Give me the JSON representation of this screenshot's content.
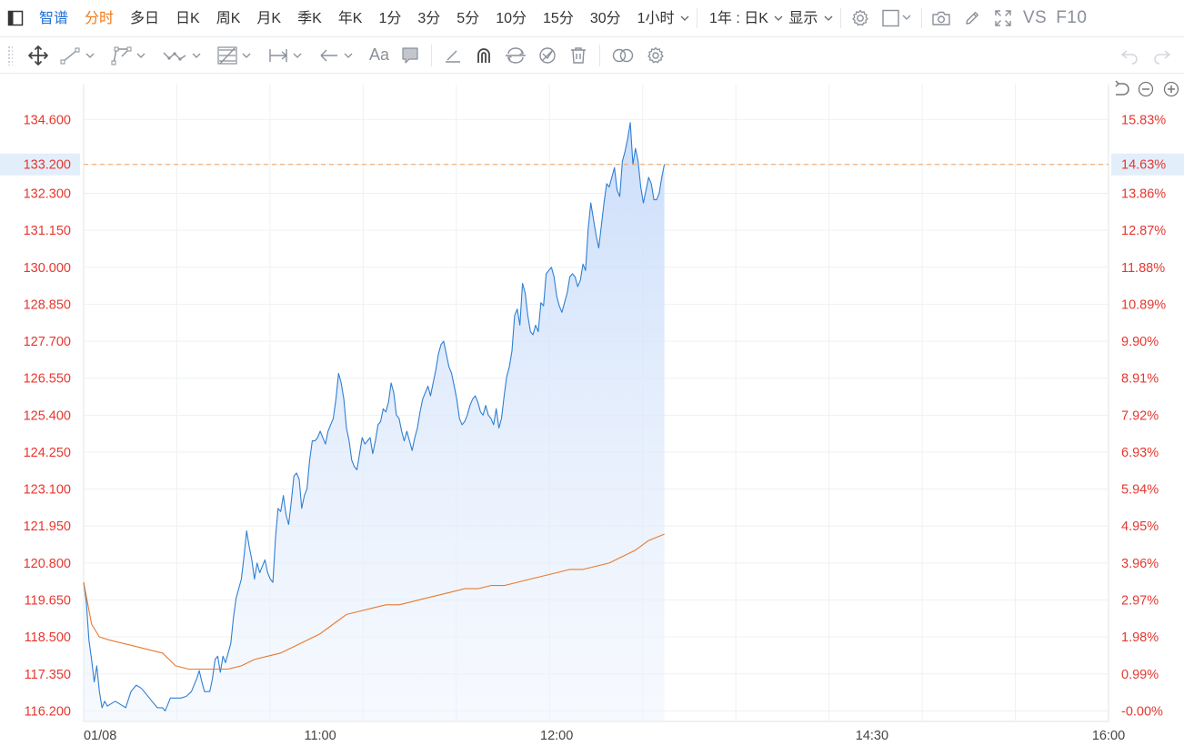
{
  "toolbar": {
    "tabs": [
      "智谱",
      "分时",
      "多日",
      "日K",
      "周K",
      "月K",
      "季K",
      "年K",
      "1分",
      "3分",
      "5分",
      "10分",
      "15分",
      "30分",
      "1小时"
    ],
    "range_select": "1年 : 日K",
    "display_select": "显示",
    "vs_label": "VS",
    "f10_label": "F10",
    "colors": {
      "active_blue": "#1f6fd8",
      "active_orange": "#f07a1a"
    }
  },
  "drawing_tools": {
    "icons": [
      "move-icon",
      "line-tool-icon",
      "polyline-tool-icon",
      "wave-tool-icon",
      "fib-tool-icon",
      "measure-tool-icon",
      "arrow-tool-icon",
      "text-tool-icon",
      "comment-tool-icon",
      "pen-icon",
      "magnet-icon",
      "sync-icon",
      "hide-icon",
      "delete-icon",
      "compare-icon",
      "settings-icon"
    ],
    "text_tool_label": "Aa"
  },
  "chart_data": {
    "type": "line",
    "x_ticks": [
      "01/08",
      "11:00",
      "12:00",
      "14:30",
      "16:00"
    ],
    "y_left_ticks": [
      "134.600",
      "133.200",
      "132.300",
      "131.150",
      "130.000",
      "128.850",
      "127.700",
      "126.550",
      "125.400",
      "124.250",
      "123.100",
      "121.950",
      "120.800",
      "119.650",
      "118.500",
      "117.350",
      "116.200"
    ],
    "y_right_ticks": [
      "15.83%",
      "14.63%",
      "13.86%",
      "12.87%",
      "11.88%",
      "10.89%",
      "9.90%",
      "8.91%",
      "7.92%",
      "6.93%",
      "5.94%",
      "4.95%",
      "3.96%",
      "2.97%",
      "1.98%",
      "0.99%",
      "-0.00%"
    ],
    "ylim": [
      115.9,
      135.4
    ],
    "xlim_minutes": [
      0,
      390
    ],
    "current_price": "133.200",
    "current_pct": "14.63%",
    "colors": {
      "price": "#2f7fd3",
      "avg": "#e8792c",
      "fill": "#cfe0fa",
      "axis_text": "#e6372f",
      "current_line": "#f0a060",
      "current_bg": "#e3eefb"
    },
    "series": [
      {
        "name": "price",
        "points": [
          [
            0,
            120.2
          ],
          [
            1,
            119.6
          ],
          [
            2,
            118.4
          ],
          [
            3,
            117.8
          ],
          [
            4,
            117.1
          ],
          [
            5,
            117.6
          ],
          [
            6,
            116.8
          ],
          [
            7,
            116.3
          ],
          [
            8,
            116.5
          ],
          [
            9,
            116.35
          ],
          [
            10,
            116.4
          ],
          [
            12,
            116.5
          ],
          [
            14,
            116.4
          ],
          [
            16,
            116.3
          ],
          [
            18,
            116.8
          ],
          [
            20,
            117.0
          ],
          [
            22,
            116.9
          ],
          [
            24,
            116.7
          ],
          [
            26,
            116.5
          ],
          [
            28,
            116.3
          ],
          [
            30,
            116.3
          ],
          [
            31,
            116.2
          ],
          [
            33,
            116.6
          ],
          [
            35,
            116.6
          ],
          [
            37,
            116.6
          ],
          [
            39,
            116.65
          ],
          [
            41,
            116.8
          ],
          [
            43,
            117.2
          ],
          [
            44,
            117.45
          ],
          [
            45,
            117.1
          ],
          [
            46,
            116.8
          ],
          [
            48,
            116.8
          ],
          [
            49,
            117.2
          ],
          [
            50,
            117.8
          ],
          [
            51,
            117.9
          ],
          [
            52,
            117.4
          ],
          [
            53,
            117.9
          ],
          [
            54,
            117.7
          ],
          [
            56,
            118.3
          ],
          [
            57,
            119.1
          ],
          [
            58,
            119.7
          ],
          [
            59,
            120.0
          ],
          [
            60,
            120.3
          ],
          [
            61,
            121.0
          ],
          [
            62,
            121.8
          ],
          [
            63,
            121.3
          ],
          [
            64,
            120.9
          ],
          [
            65,
            120.3
          ],
          [
            66,
            120.8
          ],
          [
            67,
            120.5
          ],
          [
            68,
            120.7
          ],
          [
            69,
            120.9
          ],
          [
            70,
            120.5
          ],
          [
            71,
            120.3
          ],
          [
            72,
            120.2
          ],
          [
            73,
            121.6
          ],
          [
            74,
            122.5
          ],
          [
            75,
            122.4
          ],
          [
            76,
            122.9
          ],
          [
            77,
            122.3
          ],
          [
            78,
            122.0
          ],
          [
            79,
            122.7
          ],
          [
            80,
            123.5
          ],
          [
            81,
            123.6
          ],
          [
            82,
            123.4
          ],
          [
            83,
            122.5
          ],
          [
            84,
            122.9
          ],
          [
            85,
            123.1
          ],
          [
            86,
            124.0
          ],
          [
            87,
            124.6
          ],
          [
            88,
            124.6
          ],
          [
            89,
            124.7
          ],
          [
            90,
            124.9
          ],
          [
            91,
            124.7
          ],
          [
            92,
            124.5
          ],
          [
            93,
            124.9
          ],
          [
            94,
            125.1
          ],
          [
            95,
            125.3
          ],
          [
            96,
            125.9
          ],
          [
            97,
            126.7
          ],
          [
            98,
            126.4
          ],
          [
            99,
            125.9
          ],
          [
            100,
            125.0
          ],
          [
            101,
            124.6
          ],
          [
            102,
            124.0
          ],
          [
            103,
            123.8
          ],
          [
            104,
            123.7
          ],
          [
            105,
            124.2
          ],
          [
            106,
            124.7
          ],
          [
            107,
            124.5
          ],
          [
            108,
            124.6
          ],
          [
            109,
            124.7
          ],
          [
            110,
            124.2
          ],
          [
            111,
            124.6
          ],
          [
            112,
            125.1
          ],
          [
            113,
            125.2
          ],
          [
            114,
            125.6
          ],
          [
            115,
            125.5
          ],
          [
            116,
            125.8
          ],
          [
            117,
            126.4
          ],
          [
            118,
            126.1
          ],
          [
            119,
            125.4
          ],
          [
            120,
            125.3
          ],
          [
            121,
            124.9
          ],
          [
            122,
            124.6
          ],
          [
            123,
            124.9
          ],
          [
            124,
            124.6
          ],
          [
            125,
            124.3
          ],
          [
            126,
            124.7
          ],
          [
            127,
            125.0
          ],
          [
            128,
            125.5
          ],
          [
            129,
            125.9
          ],
          [
            130,
            126.1
          ],
          [
            131,
            126.3
          ],
          [
            132,
            126.0
          ],
          [
            133,
            126.4
          ],
          [
            134,
            126.8
          ],
          [
            135,
            127.3
          ],
          [
            136,
            127.6
          ],
          [
            137,
            127.7
          ],
          [
            138,
            127.3
          ],
          [
            139,
            126.9
          ],
          [
            140,
            126.7
          ],
          [
            141,
            126.3
          ],
          [
            142,
            125.9
          ],
          [
            143,
            125.3
          ],
          [
            144,
            125.1
          ],
          [
            145,
            125.2
          ],
          [
            146,
            125.4
          ],
          [
            147,
            125.7
          ],
          [
            148,
            125.9
          ],
          [
            149,
            126.0
          ],
          [
            150,
            125.8
          ],
          [
            151,
            125.5
          ],
          [
            152,
            125.4
          ],
          [
            153,
            125.7
          ],
          [
            154,
            125.4
          ],
          [
            155,
            125.3
          ],
          [
            156,
            125.1
          ],
          [
            157,
            125.6
          ],
          [
            158,
            125.0
          ],
          [
            159,
            125.3
          ],
          [
            160,
            126.0
          ],
          [
            161,
            126.6
          ],
          [
            162,
            126.9
          ],
          [
            163,
            127.4
          ],
          [
            164,
            128.5
          ],
          [
            165,
            128.7
          ],
          [
            166,
            128.2
          ],
          [
            167,
            129.5
          ],
          [
            168,
            129.2
          ],
          [
            169,
            128.5
          ],
          [
            170,
            128.0
          ],
          [
            171,
            127.9
          ],
          [
            172,
            128.2
          ],
          [
            173,
            128.0
          ],
          [
            174,
            128.9
          ],
          [
            175,
            128.8
          ],
          [
            176,
            129.8
          ],
          [
            177,
            129.9
          ],
          [
            178,
            130.0
          ],
          [
            179,
            129.7
          ],
          [
            180,
            129.1
          ],
          [
            181,
            128.8
          ],
          [
            182,
            128.6
          ],
          [
            183,
            128.9
          ],
          [
            184,
            129.2
          ],
          [
            185,
            129.7
          ],
          [
            186,
            129.8
          ],
          [
            187,
            129.7
          ],
          [
            188,
            129.4
          ],
          [
            189,
            129.6
          ],
          [
            190,
            130.1
          ],
          [
            191,
            129.9
          ],
          [
            192,
            131.2
          ],
          [
            193,
            132.0
          ],
          [
            194,
            131.5
          ],
          [
            195,
            131.0
          ],
          [
            196,
            130.6
          ],
          [
            197,
            131.3
          ],
          [
            198,
            132.0
          ],
          [
            199,
            132.6
          ],
          [
            200,
            132.5
          ],
          [
            201,
            132.8
          ],
          [
            202,
            133.1
          ],
          [
            203,
            132.4
          ],
          [
            204,
            132.2
          ],
          [
            205,
            133.3
          ],
          [
            206,
            133.6
          ],
          [
            207,
            134.0
          ],
          [
            208,
            134.5
          ],
          [
            209,
            133.2
          ],
          [
            210,
            133.7
          ],
          [
            211,
            133.3
          ],
          [
            212,
            132.5
          ],
          [
            213,
            132.0
          ],
          [
            214,
            132.4
          ],
          [
            215,
            132.8
          ],
          [
            216,
            132.6
          ],
          [
            217,
            132.1
          ],
          [
            218,
            132.1
          ],
          [
            219,
            132.3
          ],
          [
            220,
            132.8
          ],
          [
            221,
            133.2
          ]
        ]
      },
      {
        "name": "avg",
        "points": [
          [
            0,
            120.2
          ],
          [
            3,
            118.9
          ],
          [
            6,
            118.5
          ],
          [
            10,
            118.4
          ],
          [
            15,
            118.3
          ],
          [
            20,
            118.2
          ],
          [
            25,
            118.1
          ],
          [
            30,
            118.0
          ],
          [
            35,
            117.6
          ],
          [
            40,
            117.5
          ],
          [
            50,
            117.5
          ],
          [
            55,
            117.5
          ],
          [
            60,
            117.6
          ],
          [
            65,
            117.8
          ],
          [
            70,
            117.9
          ],
          [
            75,
            118.0
          ],
          [
            80,
            118.2
          ],
          [
            85,
            118.4
          ],
          [
            90,
            118.6
          ],
          [
            95,
            118.9
          ],
          [
            100,
            119.2
          ],
          [
            105,
            119.3
          ],
          [
            110,
            119.4
          ],
          [
            115,
            119.5
          ],
          [
            120,
            119.5
          ],
          [
            125,
            119.6
          ],
          [
            130,
            119.7
          ],
          [
            135,
            119.8
          ],
          [
            140,
            119.9
          ],
          [
            145,
            120.0
          ],
          [
            150,
            120.0
          ],
          [
            155,
            120.1
          ],
          [
            160,
            120.1
          ],
          [
            165,
            120.2
          ],
          [
            170,
            120.3
          ],
          [
            175,
            120.4
          ],
          [
            180,
            120.5
          ],
          [
            185,
            120.6
          ],
          [
            190,
            120.6
          ],
          [
            195,
            120.7
          ],
          [
            200,
            120.8
          ],
          [
            205,
            121.0
          ],
          [
            210,
            121.2
          ],
          [
            215,
            121.5
          ],
          [
            221,
            121.7
          ]
        ]
      }
    ]
  }
}
